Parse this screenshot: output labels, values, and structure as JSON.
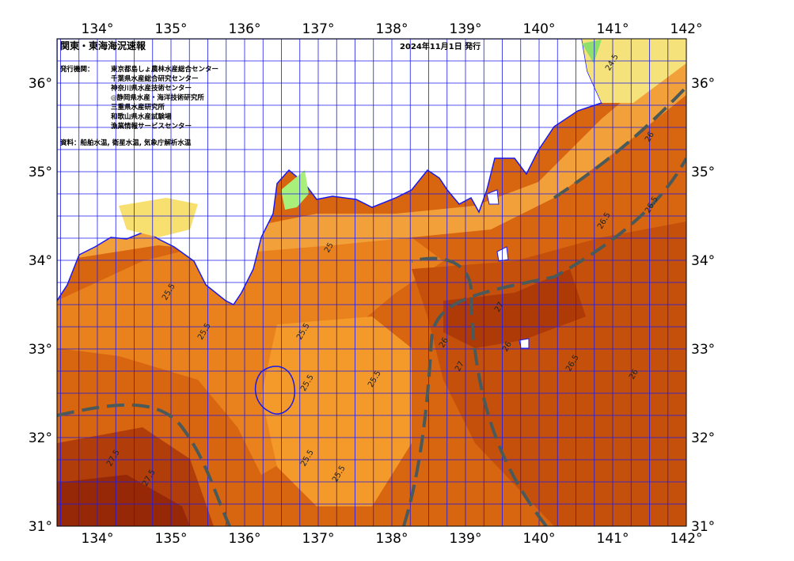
{
  "header": {
    "title": "関東・東海海況速報",
    "date": "2024年11月1日 発行"
  },
  "issuers": {
    "heading": "発行機関：",
    "items": [
      "東京都島しょ農林水産総合センター",
      "千葉県水産総合研究センター",
      "神奈川県水産技術センター",
      "◎静岡県水産・海洋技術研究所",
      "三重県水産研究所",
      "和歌山県水産試験場",
      "漁業情報サービスセンター"
    ]
  },
  "source": "資料：船舶水温, 衛星水温, 気象庁解析水温",
  "lon_labels": [
    "134°",
    "135°",
    "136°",
    "137°",
    "138°",
    "139°",
    "140°",
    "141°",
    "142°"
  ],
  "lat_labels": [
    "36°",
    "35°",
    "34°",
    "33°",
    "32°",
    "31°"
  ],
  "contour_labels": [
    "25.5",
    "25.5",
    "25.5",
    "25.5",
    "25.5",
    "25.5",
    "25.5",
    "26",
    "26",
    "26",
    "26.5",
    "26.5",
    "26.5",
    "27",
    "27",
    "27.5",
    "27.5",
    "25",
    "24.5",
    "26"
  ]
}
